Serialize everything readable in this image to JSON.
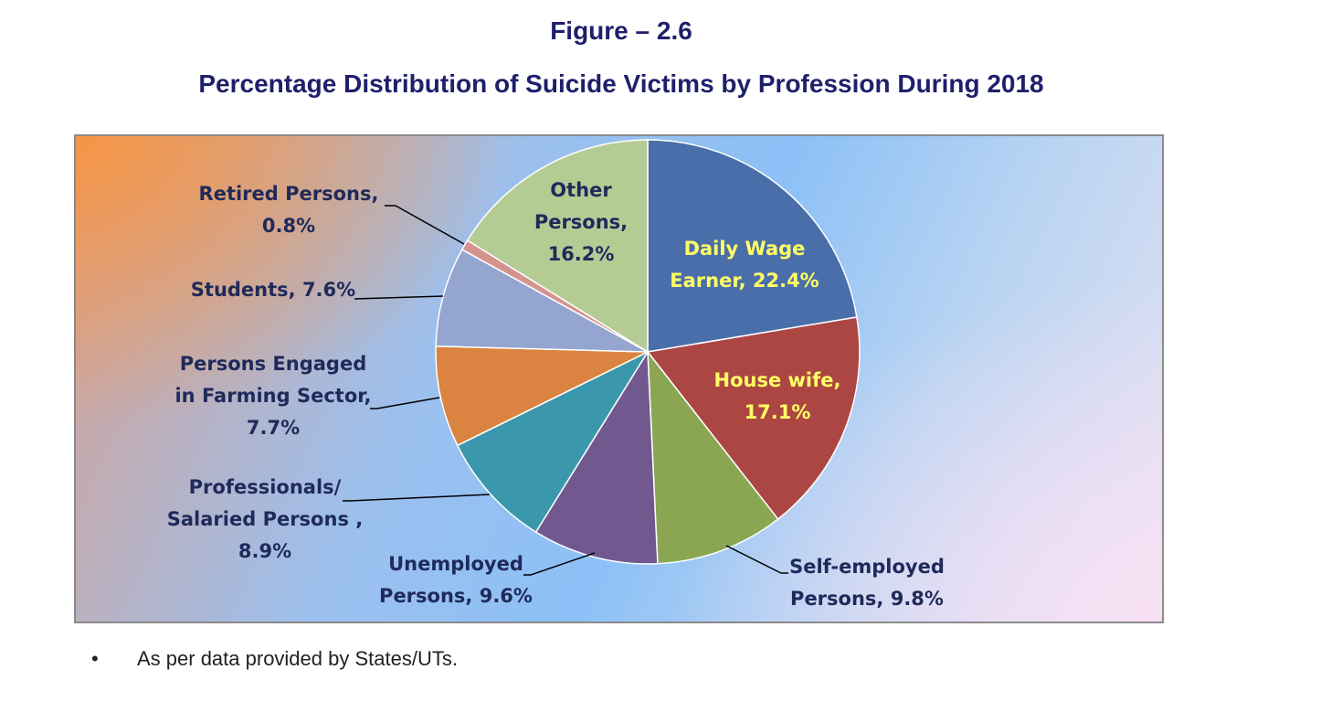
{
  "figure_label": "Figure – 2.6",
  "footnote": {
    "bullet": "•",
    "text": "As per data provided by States/UTs."
  },
  "colors": {
    "title": "#1f1f6b",
    "label_dark": "#1f2a5a",
    "label_light": "#ffff66",
    "leader": "#000000"
  },
  "chart_data": {
    "type": "pie",
    "title": "Percentage Distribution of Suicide Victims by Profession During 2018",
    "start_angle_deg": 0,
    "direction": "clockwise",
    "slices": [
      {
        "name": "Daily Wage Earner",
        "value": 22.4,
        "color": "#4a6ea9",
        "label_lines": [
          "Daily Wage",
          "Earner, 22.4%"
        ],
        "label_color": "light"
      },
      {
        "name": "House wife",
        "value": 17.1,
        "color": "#ac4643",
        "label_lines": [
          "House wife,",
          "17.1%"
        ],
        "label_color": "light"
      },
      {
        "name": "Self-employed Persons",
        "value": 9.8,
        "color": "#8aa653",
        "label_lines": [
          "Self-employed",
          "Persons, 9.8%"
        ],
        "label_color": "dark"
      },
      {
        "name": "Unemployed Persons",
        "value": 9.6,
        "color": "#71588f",
        "label_lines": [
          "Unemployed",
          "Persons, 9.6%"
        ],
        "label_color": "dark"
      },
      {
        "name": "Professionals/ Salaried Persons",
        "value": 8.9,
        "color": "#3b98ac",
        "label_lines": [
          "Professionals/",
          "Salaried Persons ,",
          "8.9%"
        ],
        "label_color": "dark"
      },
      {
        "name": "Persons Engaged in Farming Sector",
        "value": 7.7,
        "color": "#db8340",
        "label_lines": [
          "Persons Engaged",
          "in Farming Sector,",
          "7.7%"
        ],
        "label_color": "dark"
      },
      {
        "name": "Students",
        "value": 7.6,
        "color": "#94a5cf",
        "label_lines": [
          "Students, 7.6%"
        ],
        "label_color": "dark"
      },
      {
        "name": "Retired Persons",
        "value": 0.8,
        "color": "#d4938f",
        "label_lines": [
          "Retired Persons,",
          "0.8%"
        ],
        "label_color": "dark"
      },
      {
        "name": "Other Persons",
        "value": 16.2,
        "color": "#b5cb94",
        "label_lines": [
          "Other",
          "Persons,",
          "16.2%"
        ],
        "label_color": "dark"
      }
    ]
  }
}
